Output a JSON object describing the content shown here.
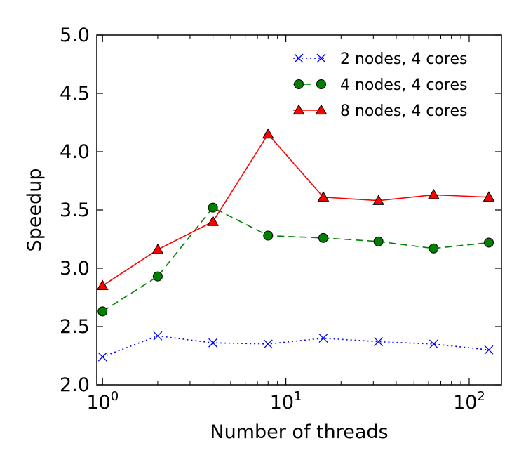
{
  "chart_data": {
    "type": "line",
    "title": "",
    "xlabel": "Number of threads",
    "ylabel": "Speedup",
    "xscale": "log",
    "xlim": [
      0.93,
      150
    ],
    "ylim": [
      2.0,
      5.0
    ],
    "x": [
      1,
      2,
      4,
      8,
      16,
      32,
      64,
      128
    ],
    "x_ticks": [
      {
        "value": 1,
        "base": "10",
        "exp": "0"
      },
      {
        "value": 10,
        "base": "10",
        "exp": "1"
      },
      {
        "value": 100,
        "base": "10",
        "exp": "2"
      }
    ],
    "y_ticks": [
      "2.0",
      "2.5",
      "3.0",
      "3.5",
      "4.0",
      "4.5",
      "5.0"
    ],
    "grid": false,
    "legend_position": "top-right",
    "series": [
      {
        "name": "2 nodes, 4 cores",
        "color": "#0000ff",
        "marker": "x",
        "linestyle": "dotted",
        "values": [
          2.24,
          2.42,
          2.36,
          2.35,
          2.4,
          2.37,
          2.35,
          2.3
        ]
      },
      {
        "name": "4 nodes, 4 cores",
        "color": "#008000",
        "marker": "circle",
        "linestyle": "dashed",
        "values": [
          2.63,
          2.93,
          3.52,
          3.28,
          3.26,
          3.23,
          3.17,
          3.22
        ]
      },
      {
        "name": "8 nodes, 4 cores",
        "color": "#ff0000",
        "marker": "triangle",
        "linestyle": "solid",
        "values": [
          2.85,
          3.16,
          3.4,
          4.15,
          3.61,
          3.58,
          3.63,
          3.61
        ]
      }
    ]
  }
}
